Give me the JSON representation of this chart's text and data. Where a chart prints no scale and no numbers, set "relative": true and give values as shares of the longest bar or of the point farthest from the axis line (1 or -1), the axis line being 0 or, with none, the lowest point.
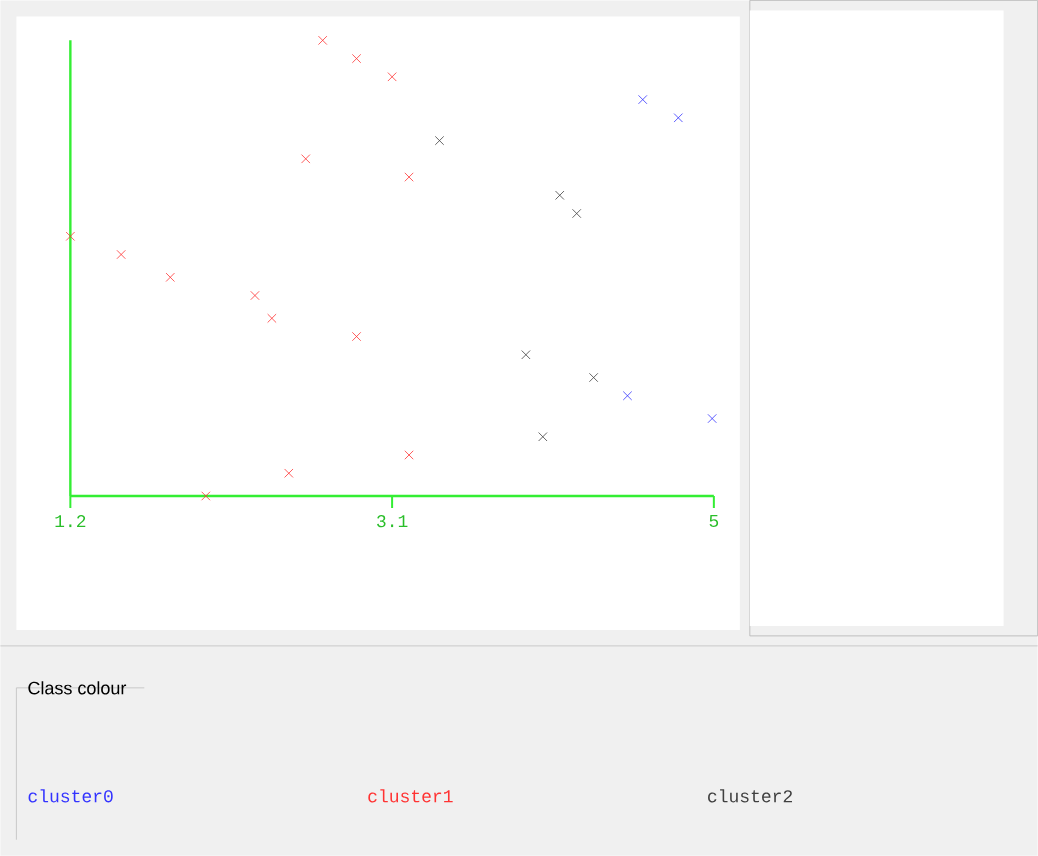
{
  "chart_data": {
    "type": "scatter",
    "relative": true,
    "marker": "cross",
    "legend": "bottom",
    "legend_title": "Class colour",
    "xlim": [
      1.2,
      5
    ],
    "xticks": [
      1.2,
      3.1,
      5
    ],
    "series": [
      {
        "name": "cluster0",
        "color": "#3333ff",
        "x": [
          4.58,
          4.79,
          4.49,
          4.99
        ],
        "values": [
          0.87,
          0.83,
          0.22,
          0.17
        ]
      },
      {
        "name": "cluster1",
        "color": "#ff3333",
        "x": [
          2.69,
          2.89,
          3.1,
          2.59,
          3.2,
          1.2,
          1.5,
          1.79,
          2.29,
          2.39,
          2.89,
          3.2,
          2.49,
          2.0
        ],
        "values": [
          1.0,
          0.96,
          0.92,
          0.74,
          0.7,
          0.57,
          0.53,
          0.48,
          0.44,
          0.39,
          0.35,
          0.09,
          0.05,
          0.0
        ]
      },
      {
        "name": "cluster2",
        "color": "#404040",
        "x": [
          3.38,
          4.09,
          4.19,
          3.89,
          4.29,
          3.99
        ],
        "values": [
          0.78,
          0.66,
          0.62,
          0.31,
          0.26,
          0.13
        ]
      }
    ]
  }
}
